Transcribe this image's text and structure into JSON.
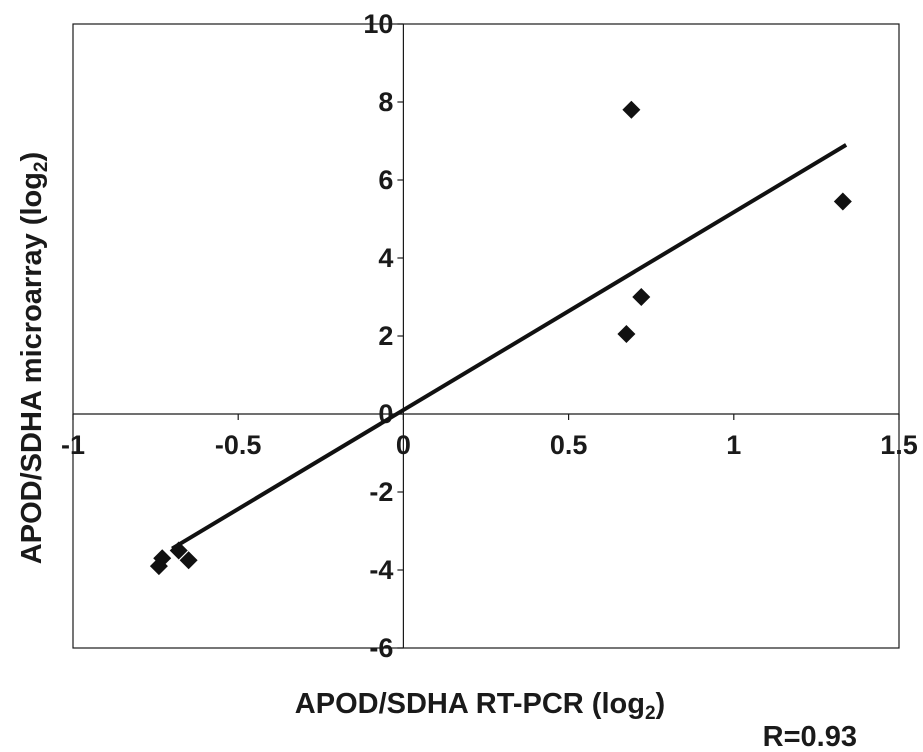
{
  "chart_data": {
    "type": "scatter",
    "xlabel": "APOD/SDHA RT-PCR (log",
    "xlabel_sub": "2",
    "xlabel_end": ")",
    "ylabel": "APOD/SDHA microarray (log",
    "ylabel_sub": "2",
    "ylabel_end": ")",
    "annotation": "R=0.93",
    "xlim": [
      -1,
      1.5
    ],
    "ylim": [
      -6,
      10
    ],
    "xticks": [
      -1,
      -0.5,
      0,
      0.5,
      1,
      1.5
    ],
    "xtick_labels": [
      "-1",
      "-0.5",
      "0",
      "0.5",
      "1",
      "1.5"
    ],
    "yticks": [
      -6,
      -4,
      -2,
      0,
      2,
      4,
      6,
      8,
      10
    ],
    "ytick_labels": [
      "-6",
      "-4",
      "-2",
      "0",
      "2",
      "4",
      "6",
      "8",
      "10"
    ],
    "grid": false,
    "marker": "diamond",
    "marker_color": "#111111",
    "points": [
      {
        "x": -0.74,
        "y": -3.9
      },
      {
        "x": -0.73,
        "y": -3.7
      },
      {
        "x": -0.68,
        "y": -3.5
      },
      {
        "x": -0.65,
        "y": -3.75
      },
      {
        "x": 0.675,
        "y": 2.05
      },
      {
        "x": 0.69,
        "y": 7.8
      },
      {
        "x": 0.72,
        "y": 3.0
      },
      {
        "x": 1.33,
        "y": 5.45
      }
    ],
    "trendline": {
      "x": [
        -0.7,
        1.34
      ],
      "y": [
        -3.45,
        6.9
      ],
      "color": "#111111"
    }
  }
}
